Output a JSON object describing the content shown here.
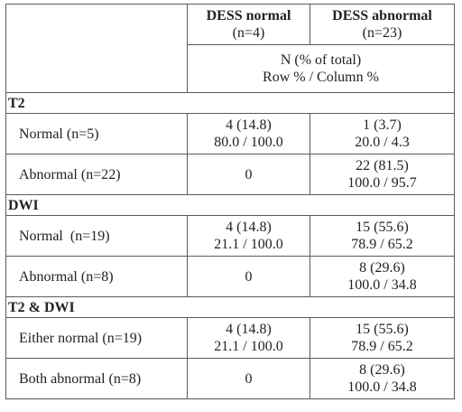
{
  "header": {
    "col_normal_title": "DESS normal",
    "col_normal_n": "(n=4)",
    "col_abnormal_title": "DESS abnormal",
    "col_abnormal_n": "(n=23)",
    "subheader_line1": "N (% of total)",
    "subheader_line2": "Row % / Column %"
  },
  "sections": [
    {
      "title": "T2",
      "rows": [
        {
          "label": "Normal (n=5)",
          "normal": [
            "4 (14.8)",
            "80.0 / 100.0"
          ],
          "abnormal": [
            "1 (3.7)",
            "20.0 / 4.3"
          ]
        },
        {
          "label": "Abnormal (n=22)",
          "normal": [
            "0"
          ],
          "abnormal": [
            "22 (81.5)",
            "100.0 / 95.7"
          ]
        }
      ]
    },
    {
      "title": "DWI",
      "rows": [
        {
          "label": "Normal  (n=19)",
          "normal": [
            "4 (14.8)",
            "21.1 / 100.0"
          ],
          "abnormal": [
            "15 (55.6)",
            "78.9 / 65.2"
          ]
        },
        {
          "label": "Abnormal (n=8)",
          "normal": [
            "0"
          ],
          "abnormal": [
            "8 (29.6)",
            "100.0 / 34.8"
          ]
        }
      ]
    },
    {
      "title": "T2 & DWI",
      "rows": [
        {
          "label": "Either normal (n=19)",
          "normal": [
            "4 (14.8)",
            "21.1 / 100.0"
          ],
          "abnormal": [
            "15 (55.6)",
            "78.9 / 65.2"
          ]
        },
        {
          "label": "Both abnormal (n=8)",
          "normal": [
            "0"
          ],
          "abnormal": [
            "8 (29.6)",
            "100.0 / 34.8"
          ]
        }
      ]
    }
  ]
}
